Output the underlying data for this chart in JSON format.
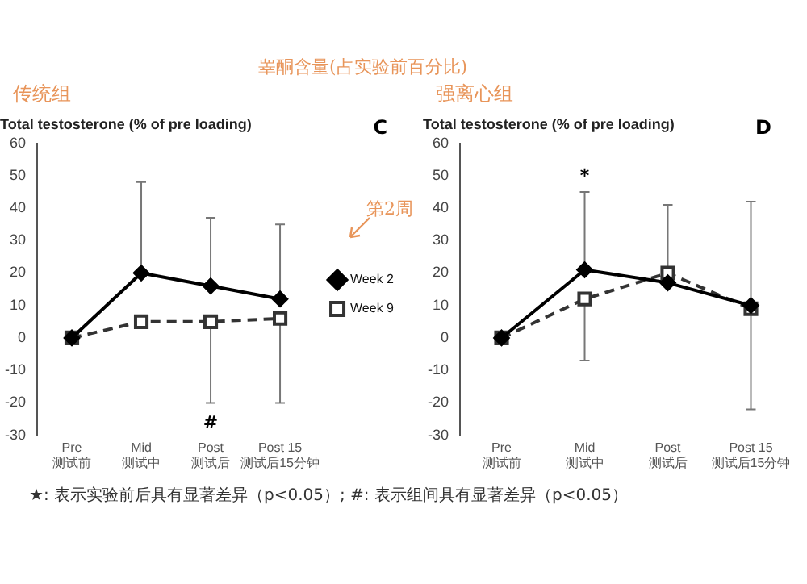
{
  "chart_data": [
    {
      "type": "line",
      "title": "Total testosterone (% of pre loading)",
      "categories": [
        "Pre\n测试前",
        "Mid\n测试中",
        "Post\n测试后",
        "Post 15\n测试后15分钟"
      ],
      "series": [
        {
          "name": "Week 2",
          "color": "#000000",
          "marker": "diamond",
          "line_style": "solid",
          "values": [
            0,
            20,
            16,
            12
          ],
          "errors": [
            null,
            [
              20,
              48
            ],
            [
              16,
              37
            ],
            [
              12,
              35
            ]
          ]
        },
        {
          "name": "Week 9",
          "color": "#333333",
          "marker": "square",
          "line_style": "dashed",
          "values": [
            0,
            5,
            5,
            6
          ],
          "errors": [
            null,
            null,
            [
              -20,
              5
            ],
            [
              -20,
              6
            ]
          ]
        }
      ],
      "ylim": [
        -30,
        60
      ],
      "yticks": [
        -30,
        -20,
        -10,
        0,
        10,
        20,
        30,
        40,
        50,
        60
      ],
      "grid": false,
      "legend": "right",
      "annotations": [
        "传统组",
        "C",
        "第2周",
        "睾酮含量(占实验前百分比)",
        "★: 表示实验前后具有显著差异（p<0.05）; #: 表示组间具有显著差异（p<0.05）",
        "#"
      ]
    },
    {
      "type": "line",
      "title": "Total testosterone (% of pre loading)",
      "categories": [
        "Pre\n测试前",
        "Mid\n测试中",
        "Post\n测试后",
        "Post 15\n测试后15分钟"
      ],
      "series": [
        {
          "color": "#000000",
          "marker": "diamond",
          "line_style": "solid",
          "values": [
            0,
            21,
            17,
            10
          ],
          "errors": [
            null,
            [
              21,
              45
            ],
            [
              17,
              41
            ],
            [
              10,
              42
            ]
          ]
        },
        {
          "color": "#333333",
          "marker": "square",
          "line_style": "dashed",
          "values": [
            0,
            12,
            20,
            9
          ],
          "errors": [
            null,
            [
              -7,
              12
            ],
            null,
            [
              -22,
              9
            ]
          ]
        }
      ],
      "ylim": [
        -30,
        60
      ],
      "yticks": [
        -30,
        -20,
        -10,
        0,
        10,
        20,
        30,
        40,
        50,
        60
      ],
      "grid": false,
      "legend": false,
      "annotations": [
        "强离心组",
        "D",
        "*"
      ]
    }
  ]
}
